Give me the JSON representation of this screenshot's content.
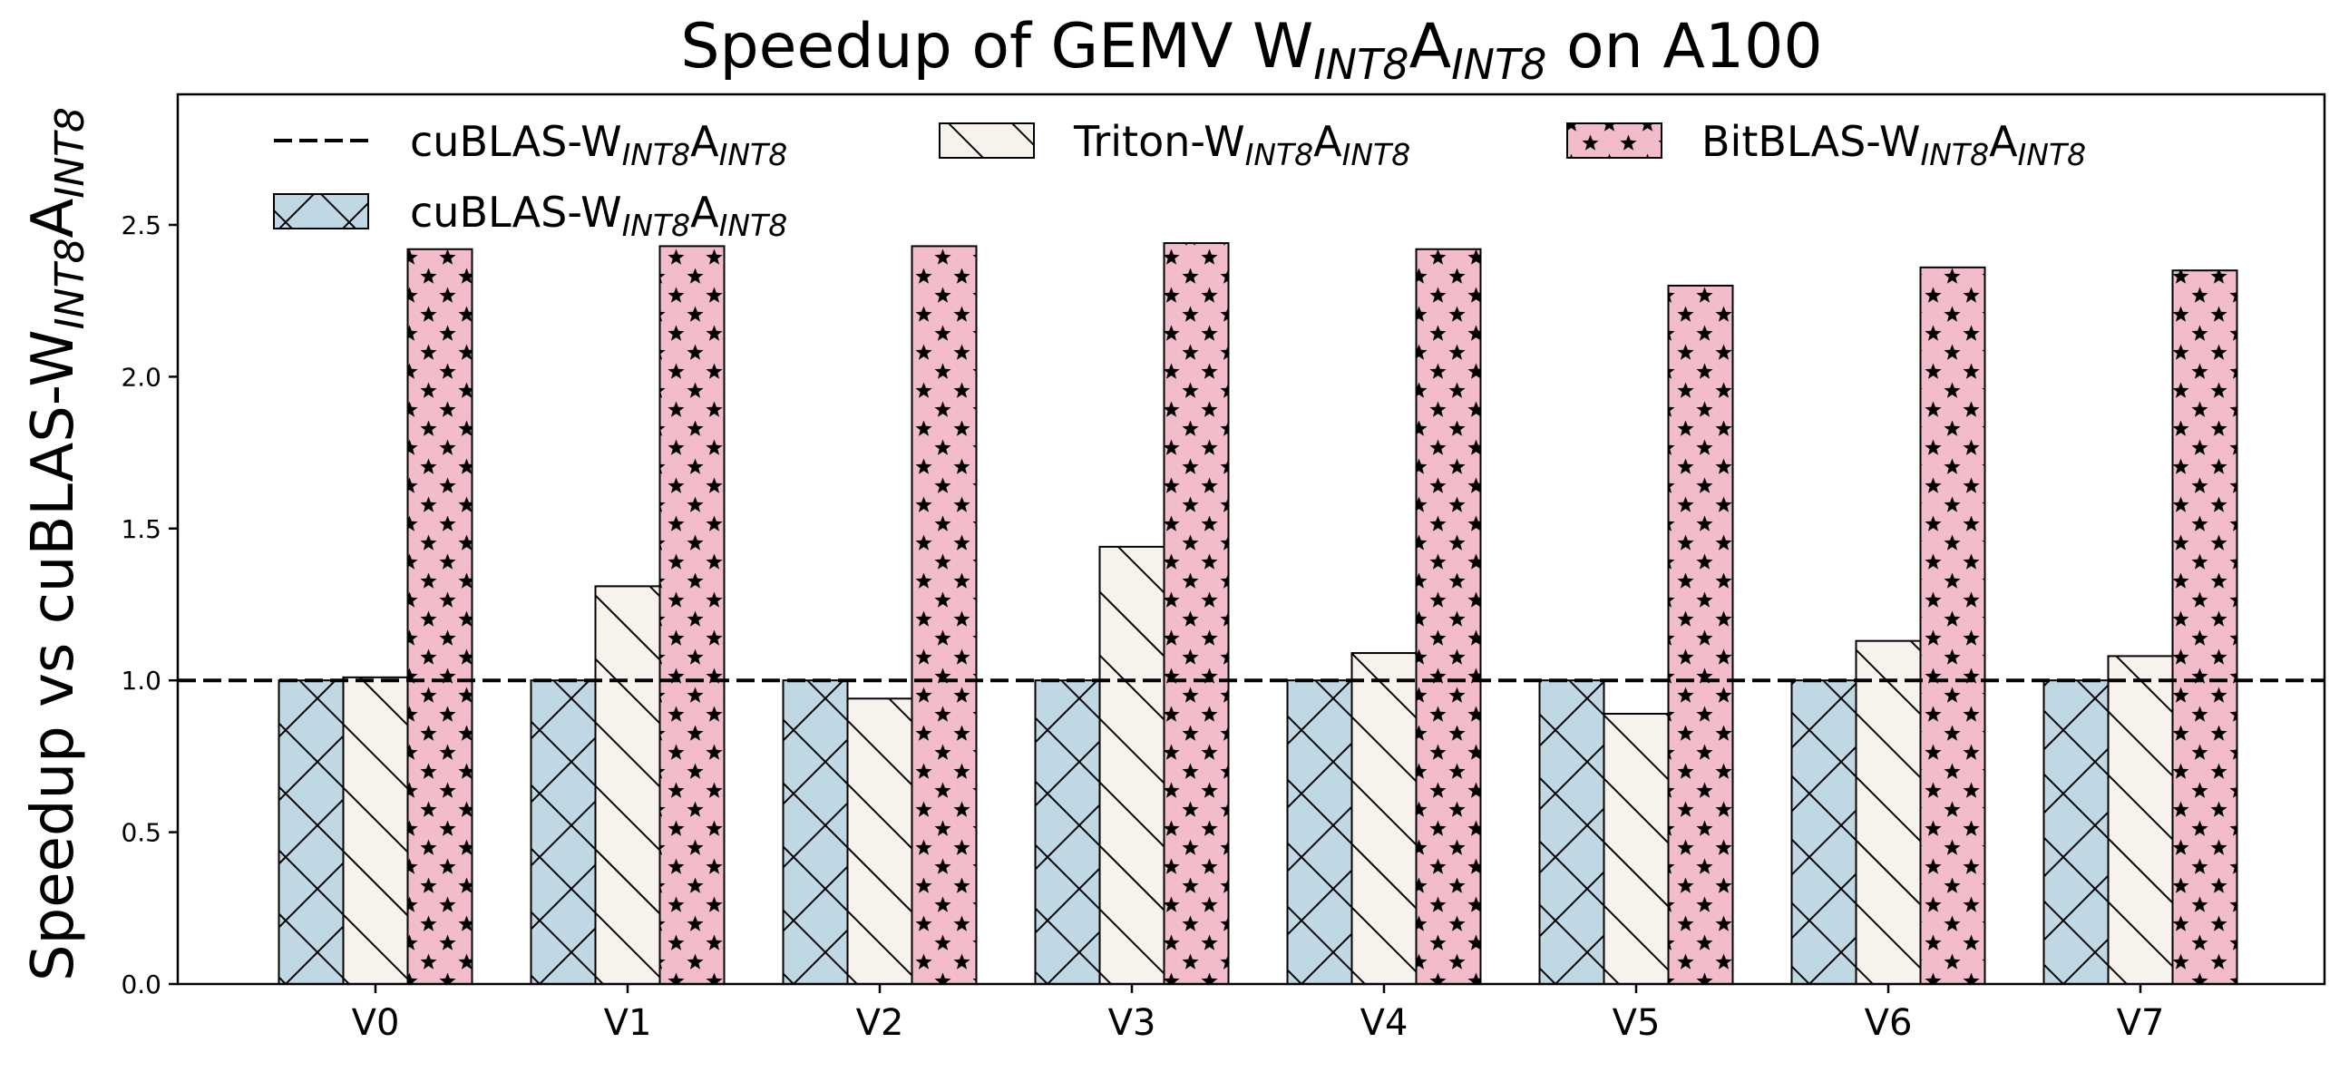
{
  "chart_data": {
    "type": "bar",
    "title": {
      "main": "Speedup of GEMV W",
      "sub1": "INT8",
      "mid": "A",
      "sub2": "INT8",
      "tail": " on A100"
    },
    "ylabel": {
      "main": "Speedup vs cuBLAS-W",
      "sub1": "INT8",
      "mid": "A",
      "sub2": "INT8"
    },
    "xlabel": "",
    "ylim": [
      0,
      2.93
    ],
    "yticks": [
      "0.0",
      "0.5",
      "1.0",
      "1.5",
      "2.0",
      "2.5"
    ],
    "categories": [
      "V0",
      "V1",
      "V2",
      "V3",
      "V4",
      "V5",
      "V6",
      "V7"
    ],
    "series": [
      {
        "name": {
          "main": "cuBLAS-W",
          "sub1": "INT8",
          "mid": "A",
          "sub2": "INT8"
        },
        "values": [
          1.0,
          1.0,
          1.0,
          1.0,
          1.0,
          1.0,
          1.0,
          1.0
        ],
        "color": "#c0d8e4",
        "hatch": "crosshatch"
      },
      {
        "name": {
          "main": "Triton-W",
          "sub1": "INT8",
          "mid": "A",
          "sub2": "INT8"
        },
        "values": [
          1.01,
          1.31,
          0.94,
          1.44,
          1.09,
          0.89,
          1.13,
          1.08
        ],
        "color": "#f7f2eb",
        "hatch": "backslash"
      },
      {
        "name": {
          "main": "BitBLAS-W",
          "sub1": "INT8",
          "mid": "A",
          "sub2": "INT8"
        },
        "values": [
          2.42,
          2.43,
          2.43,
          2.44,
          2.42,
          2.3,
          2.36,
          2.35
        ],
        "color": "#f2bccb",
        "hatch": "stars"
      }
    ],
    "reference_line": {
      "name": {
        "main": "cuBLAS-W",
        "sub1": "INT8",
        "mid": "A",
        "sub2": "INT8"
      },
      "value": 1.0,
      "style": "dashed"
    },
    "legend_placement": "top-left, 3 columns",
    "grid": false
  }
}
